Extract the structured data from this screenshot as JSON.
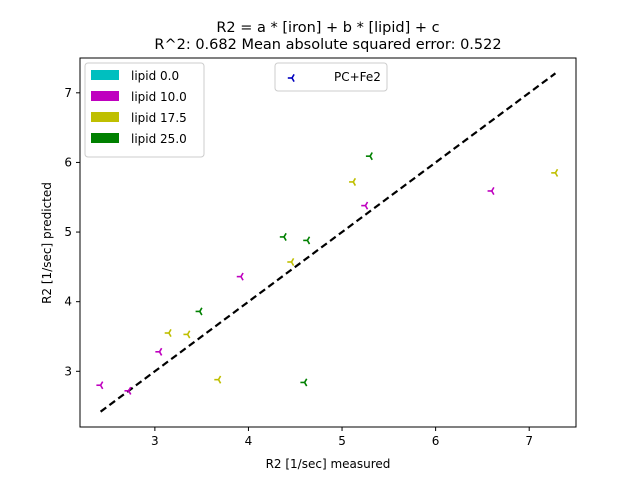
{
  "chart_data": {
    "type": "scatter",
    "title_line1": "R2 = a * [iron] + b * [lipid]  + c",
    "title_line2": "R^2: 0.682 Mean absolute squared error: 0.522",
    "xlabel": "R2 [1/sec] measured",
    "ylabel": "R2 [1/sec] predicted",
    "xlim": [
      2.2,
      7.5
    ],
    "ylim": [
      2.2,
      7.5
    ],
    "xticks": [
      3,
      4,
      5,
      6,
      7
    ],
    "yticks": [
      3,
      4,
      5,
      6,
      7
    ],
    "grid": false,
    "fit_line": {
      "x": [
        2.42,
        7.28
      ],
      "y": [
        2.42,
        7.28
      ],
      "color": "#000000",
      "style": "dashed"
    },
    "marker_legend": {
      "label": "PC+Fe2",
      "color": "#0000bf",
      "placement": "top-center"
    },
    "color_legend": {
      "placement": "top-left",
      "entries": [
        {
          "label": "lipid 0.0",
          "color": "#00bfbf"
        },
        {
          "label": "lipid 10.0",
          "color": "#bf00bf"
        },
        {
          "label": "lipid 17.5",
          "color": "#bfbf00"
        },
        {
          "label": "lipid 25.0",
          "color": "#008000"
        }
      ]
    },
    "series": [
      {
        "lipid": "10.0",
        "color": "#bf00bf",
        "x": [
          2.42,
          2.72,
          3.05,
          3.92,
          5.25,
          6.6
        ],
        "y": [
          2.8,
          2.72,
          3.28,
          4.36,
          5.38,
          5.59
        ]
      },
      {
        "lipid": "17.5",
        "color": "#bfbf00",
        "x": [
          3.15,
          3.35,
          3.68,
          4.46,
          5.12,
          7.28
        ],
        "y": [
          3.55,
          3.53,
          2.88,
          4.57,
          5.72,
          5.85
        ]
      },
      {
        "lipid": "25.0",
        "color": "#008000",
        "x": [
          3.48,
          4.38,
          4.6,
          4.63,
          5.3
        ],
        "y": [
          3.86,
          4.93,
          2.84,
          4.88,
          6.09
        ]
      }
    ]
  }
}
